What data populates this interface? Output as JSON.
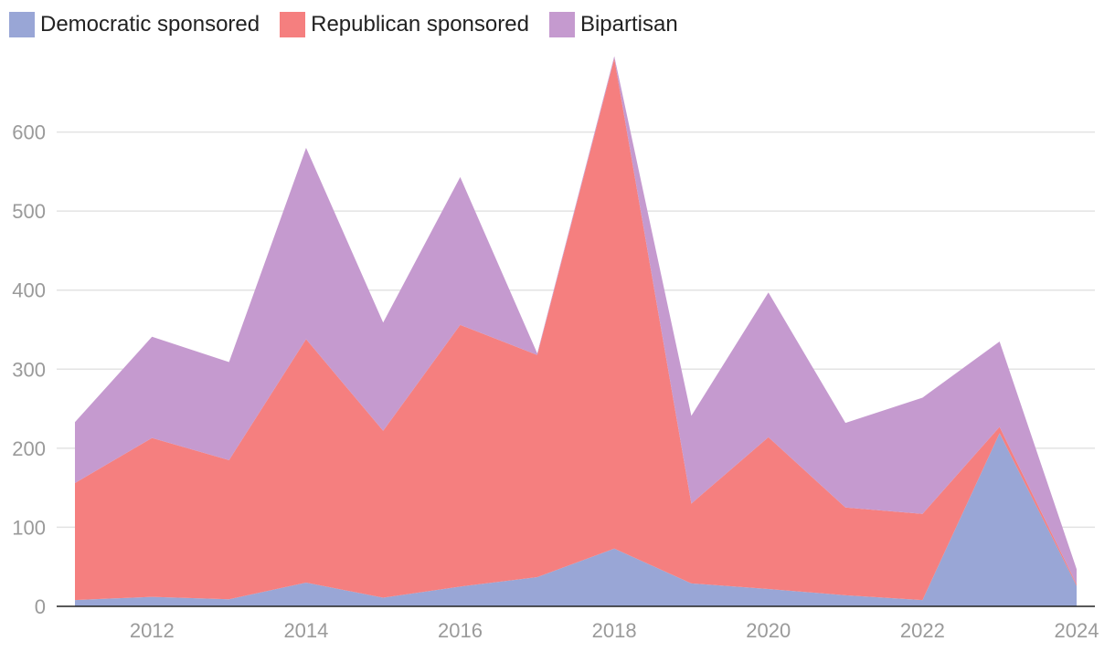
{
  "chart_data": {
    "type": "area",
    "stacked": true,
    "x": [
      2011,
      2012,
      2013,
      2014,
      2015,
      2016,
      2017,
      2018,
      2019,
      2020,
      2021,
      2022,
      2023,
      2024
    ],
    "series": [
      {
        "name": "Democratic sponsored",
        "color": "#99a6d6",
        "values": [
          8,
          12,
          9,
          30,
          11,
          25,
          37,
          73,
          29,
          22,
          14,
          8,
          219,
          26
        ]
      },
      {
        "name": "Republican sponsored",
        "color": "#f57f7f",
        "values": [
          148,
          201,
          176,
          308,
          211,
          331,
          281,
          620,
          101,
          192,
          111,
          109,
          8,
          2
        ]
      },
      {
        "name": "Bipartisan",
        "color": "#c59acf",
        "values": [
          77,
          128,
          124,
          242,
          137,
          187,
          2,
          3,
          111,
          183,
          107,
          147,
          108,
          19
        ]
      }
    ],
    "x_ticks": [
      "2012",
      "2014",
      "2016",
      "2018",
      "2020",
      "2022",
      "2024"
    ],
    "y_ticks": [
      "0",
      "100",
      "200",
      "300",
      "400",
      "500",
      "600"
    ],
    "xlim": [
      2011,
      2024
    ],
    "ylim": [
      0,
      700
    ],
    "grid": true,
    "legend_position": "top-left"
  }
}
